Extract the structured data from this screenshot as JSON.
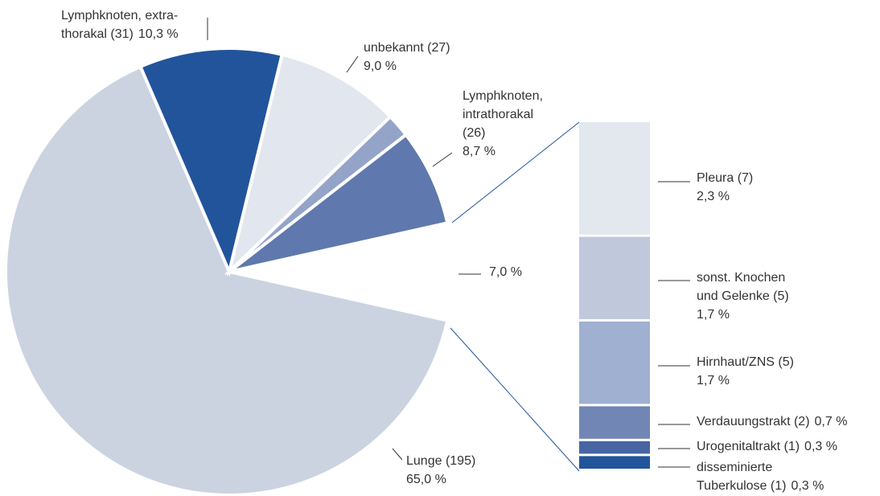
{
  "chart_data": [
    {
      "type": "pie",
      "labels": [
        [
          "Lunge (195)"
        ],
        [
          "Lymphknoten, extra-",
          "thorakal (31)"
        ],
        [
          "unbekannt (27)"
        ],
        [
          "Lymphknoten,",
          "intrathorakal",
          "(26)"
        ],
        null
      ],
      "values": [
        65.0,
        10.3,
        9.0,
        8.7,
        7.0
      ],
      "value_labels": [
        "65,0 %",
        "10,3 %",
        "9,0 %",
        "8,7 %",
        "7,0 %"
      ],
      "colors": [
        "#cbd3e1",
        "#22549b",
        "#e2e6ee",
        "#93a4c8",
        "#5f78ad"
      ]
    },
    {
      "type": "bar",
      "labels": [
        [
          "Pleura (7)"
        ],
        [
          "sonst. Knochen",
          "und Gelenke (5)"
        ],
        [
          "Hirnhaut/ZNS (5)"
        ],
        [
          "Verdauungstrakt (2)"
        ],
        [
          "Urogenitaltrakt (1)"
        ],
        [
          "disseminierte",
          "Tuberkulose (1)"
        ]
      ],
      "values": [
        2.3,
        1.7,
        1.7,
        0.7,
        0.3,
        0.3
      ],
      "value_labels": [
        "2,3 %",
        "1,7 %",
        "1,7 %",
        "0,7 %",
        "0,3 %",
        "0,3 %"
      ],
      "colors": [
        "#e3e7ee",
        "#c0c9dc",
        "#9fb0d1",
        "#7186b5",
        "#4865a3",
        "#22549b"
      ]
    }
  ]
}
